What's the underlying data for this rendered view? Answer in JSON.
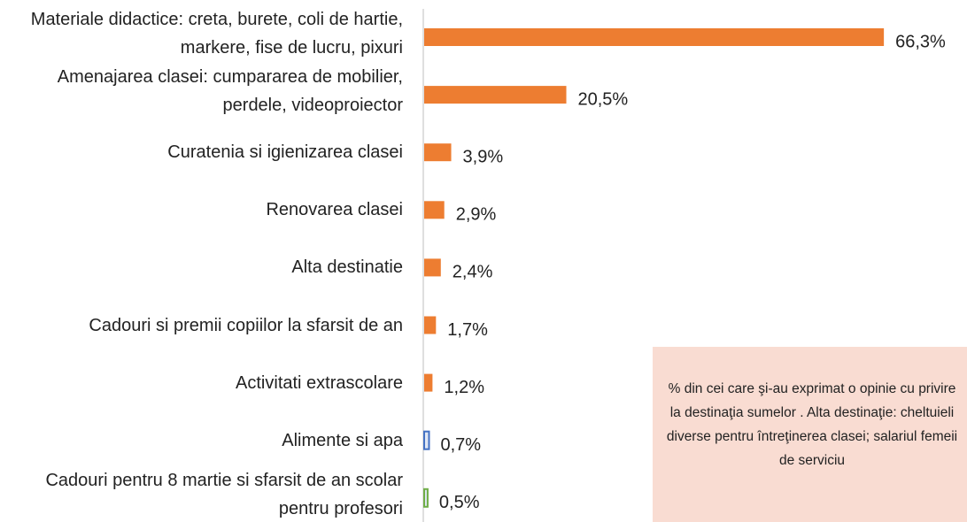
{
  "chart_data": {
    "type": "bar",
    "orientation": "horizontal",
    "categories": [
      "Materiale didactice: creta, burete, coli de hartie, markere, fise de lucru, pixuri",
      "Amenajarea clasei: cumpararea de mobilier, perdele, videoproiector",
      "Curatenia si igienizarea clasei",
      "Renovarea clasei",
      "Alta destinatie",
      "Cadouri si premii copiilor la sfarsit de an",
      "Activitati extrascolare",
      "Alimente si apa",
      "Cadouri pentru 8 martie si sfarsit de an scolar pentru profesori"
    ],
    "values": [
      66.3,
      20.5,
      3.9,
      2.9,
      2.4,
      1.7,
      1.2,
      0.7,
      0.5
    ],
    "value_labels": [
      "66,3%",
      "20,5%",
      "3,9%",
      "2,9%",
      "2,4%",
      "1,7%",
      "1,2%",
      "0,7%",
      "0,5%"
    ],
    "colors": [
      "#ED7D31",
      "#ED7D31",
      "#ED7D31",
      "#ED7D31",
      "#ED7D31",
      "#ED7D31",
      "#ED7D31",
      "#4472C4",
      "#70AD47"
    ],
    "annotation": "% din cei care şi-au exprimat o opinie cu privire la destinaţia sumelor . Alta destinaţie: cheltuieli diverse pentru întreţinerea clasei; salariul femeii de serviciu"
  }
}
